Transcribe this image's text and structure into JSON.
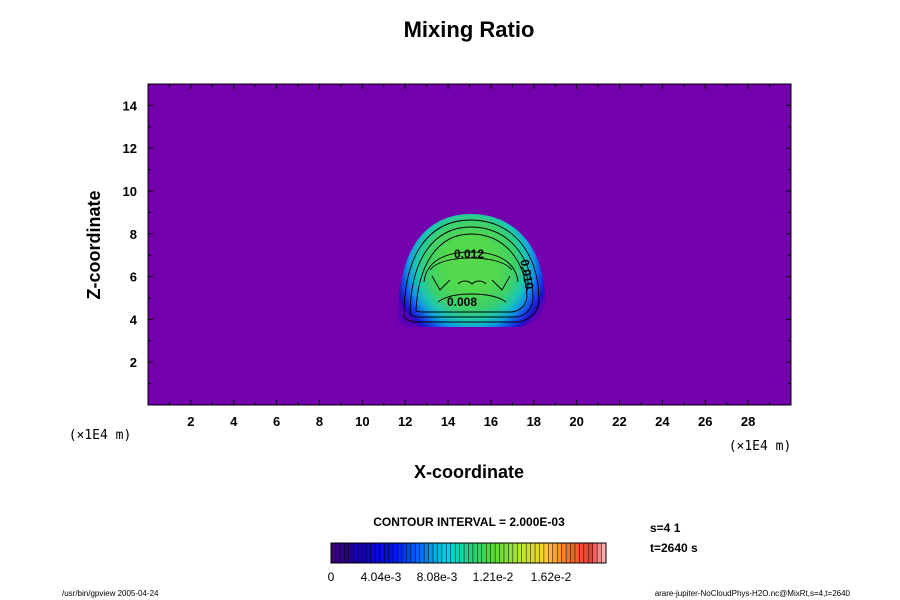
{
  "chart_data": {
    "type": "heatmap",
    "title": "Mixing Ratio",
    "xlabel": "X-coordinate",
    "ylabel": "Z-coordinate",
    "x_unit": "(×1E4 m)",
    "y_unit": "(×1E4 m)",
    "xlim": [
      0,
      30
    ],
    "ylim": [
      0,
      15
    ],
    "x_ticks": [
      "2",
      "4",
      "6",
      "8",
      "10",
      "12",
      "14",
      "16",
      "18",
      "20",
      "22",
      "24",
      "26",
      "28"
    ],
    "y_ticks": [
      "2",
      "4",
      "6",
      "8",
      "10",
      "12",
      "14"
    ],
    "contour_interval_text": "CONTOUR INTERVAL = 2.000E-03",
    "contour_labels": [
      "0.012",
      "0.008",
      "0.010"
    ],
    "colorbar_labels": [
      "0",
      "4.04e-3",
      "8.08e-3",
      "1.21e-2",
      "1.62e-2"
    ],
    "plume": {
      "x_center": 15,
      "base_z": 3.6,
      "half_width": 3.0,
      "top_z": 9.2,
      "peak_value": 0.012
    },
    "colors": {
      "background_field": "#7300ac",
      "plot_border": "#000000"
    }
  },
  "info": {
    "s_text": "s=4 1",
    "t_text": "t=2640 s",
    "footer_left": "/usr/bin/gpview 2005-04-24",
    "footer_right": "arare-jupiter-NoCloudPhys-H2O.nc@MixRt,s=4,t=2640"
  }
}
